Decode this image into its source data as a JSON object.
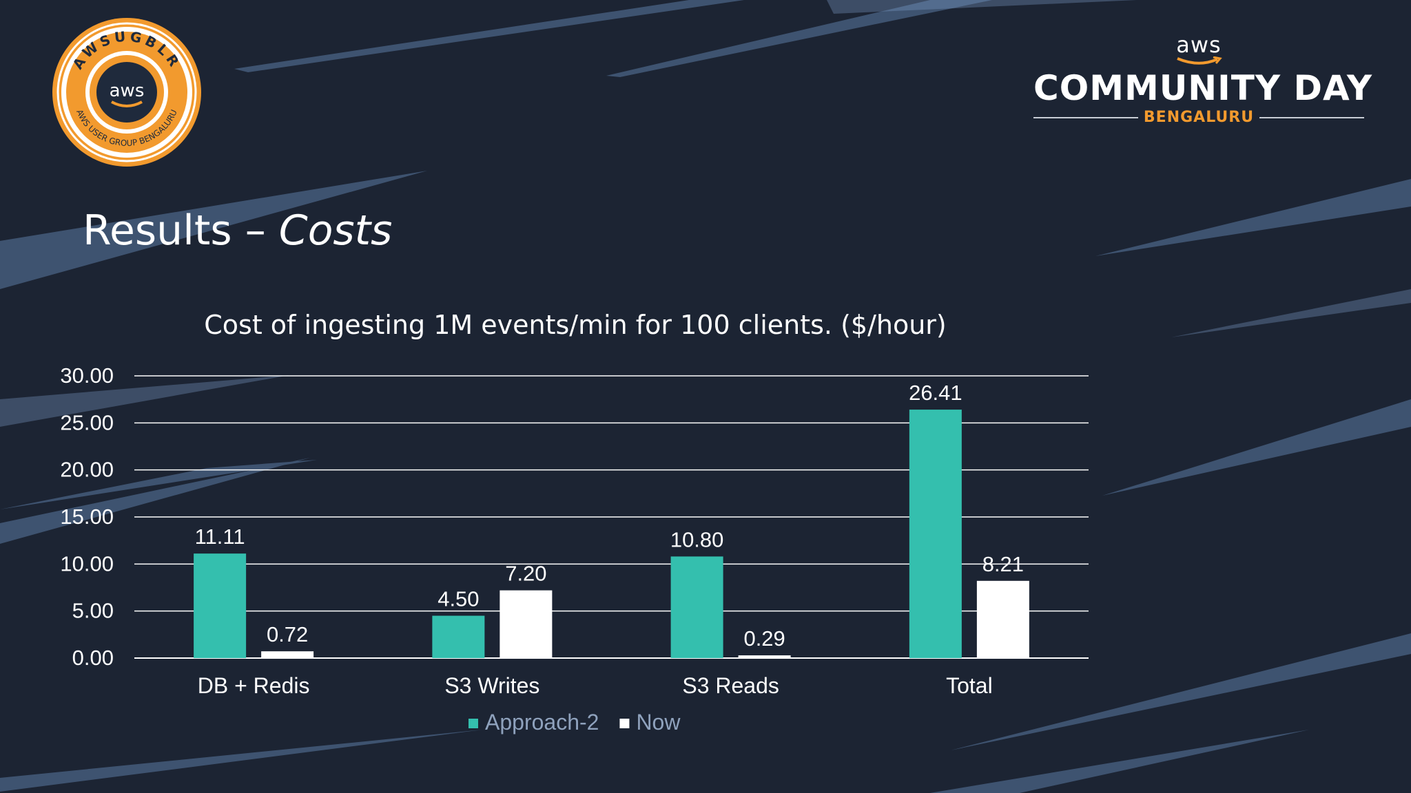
{
  "slide": {
    "title_main": "Results – ",
    "title_emph": "Costs"
  },
  "badge": {
    "ring_text": "AWSUGBLR",
    "inner_text": "AWS USER GROUP BENGALURU",
    "center_text": "aws",
    "colors": {
      "ring": "#f29a2e",
      "inner": "#1f2a3c"
    }
  },
  "brand": {
    "aws": "aws",
    "title": "COMMUNITY DAY",
    "subtitle": "BENGALURU"
  },
  "chart_data": {
    "type": "bar",
    "title": "Cost of ingesting 1M events/min for 100 clients. ($/hour)",
    "categories": [
      "DB + Redis",
      "S3 Writes",
      "S3 Reads",
      "Total"
    ],
    "series": [
      {
        "name": "Approach-2",
        "color": "#34bfae",
        "values": [
          11.11,
          4.5,
          10.8,
          26.41
        ],
        "labels": [
          "11.11",
          "4.50",
          "10.80",
          "26.41"
        ]
      },
      {
        "name": "Now",
        "color": "#ffffff",
        "values": [
          0.72,
          7.2,
          0.29,
          8.21
        ],
        "labels": [
          "0.72",
          "7.20",
          "0.29",
          "8.21"
        ]
      }
    ],
    "ylim": [
      0,
      30
    ],
    "yticks": [
      "0.00",
      "5.00",
      "10.00",
      "15.00",
      "20.00",
      "25.00",
      "30.00"
    ],
    "grid": true,
    "legend_position": "bottom"
  }
}
